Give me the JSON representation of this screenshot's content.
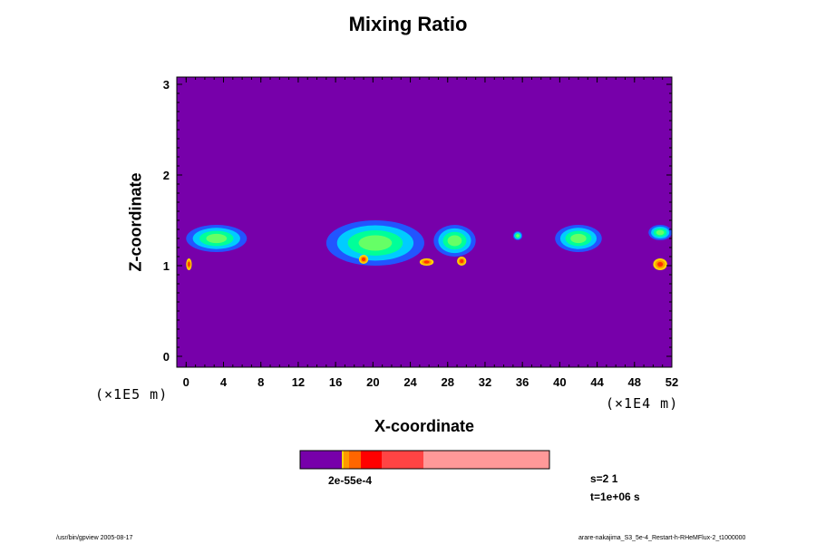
{
  "chart_data": {
    "type": "heatmap",
    "title": "Mixing Ratio",
    "xlabel": "X-coordinate",
    "ylabel": "Z-coordinate",
    "x_unit": "(×1E4 m)",
    "y_unit": "(×1E5 m)",
    "xlim": [
      -1,
      52
    ],
    "ylim": [
      -0.12,
      3.08
    ],
    "xticks": [
      0,
      4,
      8,
      12,
      16,
      20,
      24,
      28,
      32,
      36,
      40,
      44,
      48,
      52
    ],
    "yticks": [
      0,
      1,
      2,
      3
    ],
    "background_color": "#7700aa",
    "colorbar": {
      "label": "2e-55e-4",
      "colors": [
        "#7700aa",
        "#ffd700",
        "#ff9900",
        "#ff6600",
        "#ff0000",
        "#ff4444",
        "#ff9999"
      ]
    },
    "features": [
      {
        "name": "cloud-band-1",
        "x": [
          0.0,
          6.5
        ],
        "z": [
          1.15,
          1.45
        ]
      },
      {
        "name": "cloud-band-2",
        "x": [
          15.0,
          25.5
        ],
        "z": [
          1.0,
          1.5
        ]
      },
      {
        "name": "cloud-band-3",
        "x": [
          26.5,
          31.0
        ],
        "z": [
          1.1,
          1.45
        ]
      },
      {
        "name": "cloud-band-4",
        "x": [
          35.0,
          36.0
        ],
        "z": [
          1.28,
          1.38
        ]
      },
      {
        "name": "cloud-band-5",
        "x": [
          39.5,
          44.5
        ],
        "z": [
          1.15,
          1.45
        ]
      },
      {
        "name": "cloud-band-6",
        "x": [
          49.5,
          52.0
        ],
        "z": [
          1.28,
          1.45
        ]
      },
      {
        "name": "high-ratio-core-1",
        "x": [
          0.0,
          0.6
        ],
        "z": [
          0.95,
          1.08
        ]
      },
      {
        "name": "high-ratio-core-2",
        "x": [
          18.5,
          19.5
        ],
        "z": [
          1.02,
          1.12
        ]
      },
      {
        "name": "high-ratio-core-3",
        "x": [
          25.0,
          26.5
        ],
        "z": [
          1.0,
          1.08
        ]
      },
      {
        "name": "high-ratio-core-4",
        "x": [
          29.0,
          30.0
        ],
        "z": [
          1.0,
          1.1
        ]
      },
      {
        "name": "high-ratio-core-5",
        "x": [
          50.0,
          51.5
        ],
        "z": [
          0.95,
          1.08
        ]
      }
    ]
  },
  "info": {
    "s_label": "s=2 1",
    "t_label": "t=1e+06 s"
  },
  "footer": {
    "left": "/usr/bin/gpview 2005-08-17",
    "right": "arare-nakajima_S3_5e-4_Restart-h-RHeMFlux-2_t1000000"
  }
}
